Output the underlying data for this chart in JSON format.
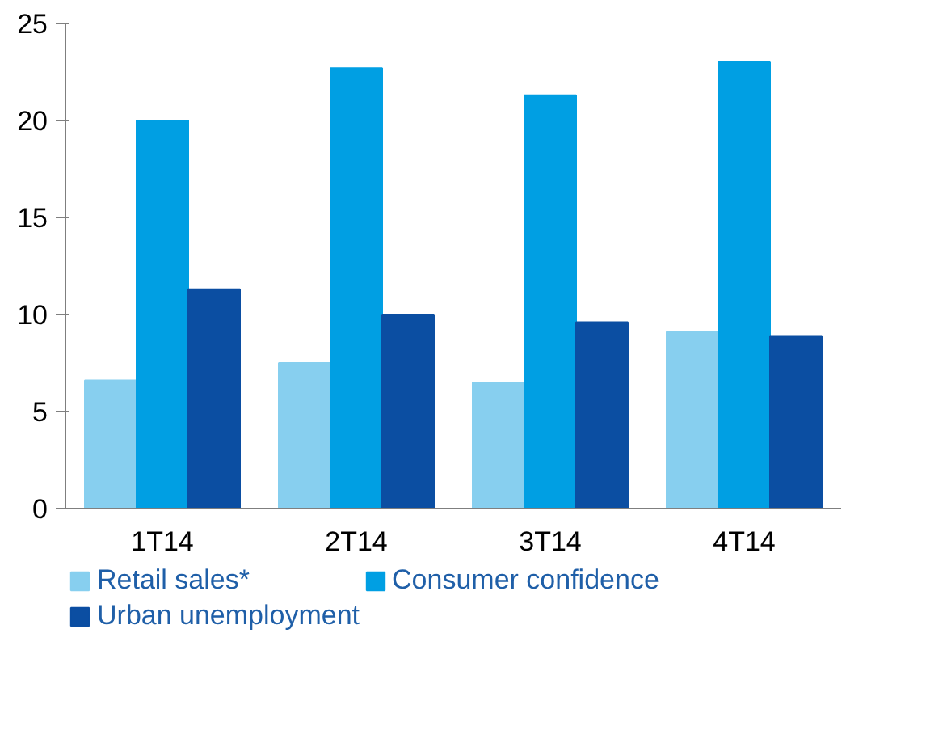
{
  "chart_data": {
    "type": "bar",
    "categories": [
      "1T14",
      "2T14",
      "3T14",
      "4T14"
    ],
    "series": [
      {
        "name": "Retail sales*",
        "color": "#87cfef",
        "values": [
          6.6,
          7.5,
          6.5,
          9.1
        ]
      },
      {
        "name": "Consumer confidence",
        "color": "#009fe3",
        "values": [
          20.0,
          22.7,
          21.3,
          23.0
        ]
      },
      {
        "name": "Urban unemployment",
        "color": "#0b4ea2",
        "values": [
          11.3,
          10.0,
          9.6,
          8.9
        ]
      }
    ],
    "ylim": [
      0,
      25
    ],
    "yticks": [
      0,
      5,
      10,
      15,
      20,
      25
    ],
    "grid": false,
    "legend": "bottom"
  }
}
